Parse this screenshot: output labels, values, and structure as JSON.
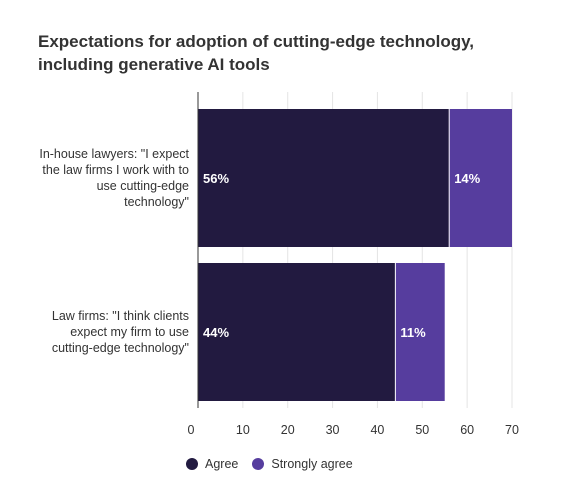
{
  "chart_data": {
    "type": "bar",
    "orientation": "horizontal",
    "stacked": true,
    "title": "Expectations for adoption of cutting-edge technology, including generative AI tools",
    "categories": [
      "In-house lawyers: \"I expect the law firms I work with to use cutting-edge technology\"",
      "Law firms: \"I think clients expect my firm to use cutting-edge technology\""
    ],
    "category_lines": [
      [
        "In-house lawyers: \"I expect",
        "the law firms I work with to",
        "use cutting-edge",
        "technology\""
      ],
      [
        "Law firms: \"I think clients",
        "expect my firm to use",
        "cutting-edge technology\""
      ]
    ],
    "series": [
      {
        "name": "Agree",
        "values": [
          56,
          44
        ],
        "labels": [
          "56%",
          "44%"
        ],
        "color": "#221a40"
      },
      {
        "name": "Strongly agree",
        "values": [
          14,
          11
        ],
        "labels": [
          "14%",
          "11%"
        ],
        "color": "#563d9e"
      }
    ],
    "x_ticks": [
      "0",
      "10",
      "20",
      "30",
      "40",
      "50",
      "60",
      "70"
    ],
    "xlim": [
      0,
      70
    ],
    "grid": true,
    "legend": "bottom-left"
  }
}
